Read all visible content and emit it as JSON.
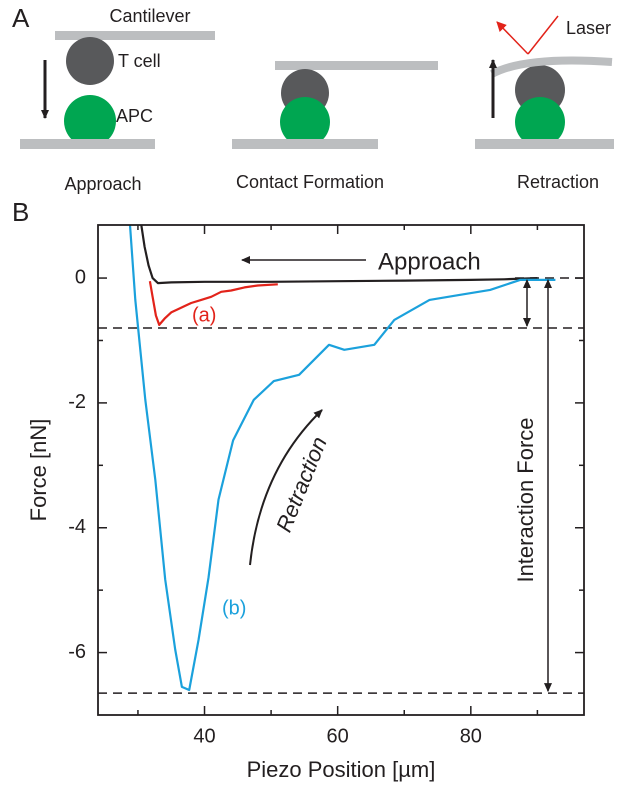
{
  "panel_labels": [
    "A",
    "B"
  ],
  "diagram": {
    "labels": {
      "cantilever": "Cantilever",
      "t_cell": "T cell",
      "apc": "APC",
      "laser": "Laser"
    },
    "steps": [
      "Approach",
      "Contact Formation",
      "Retraction"
    ]
  },
  "chart_data": {
    "type": "line",
    "xlabel": "Piezo Position [µm]",
    "ylabel": "Force [nN]",
    "xlim": [
      24,
      97
    ],
    "ylim": [
      -7,
      0.85
    ],
    "xticks": [
      40,
      60,
      80
    ],
    "yticks": [
      0,
      -2,
      -4,
      -6
    ],
    "xminor": [
      30,
      50,
      70,
      90
    ],
    "yminor": [
      -1,
      -3,
      -5
    ],
    "hlines": [
      0,
      -0.8,
      -6.65
    ],
    "annotations": [
      "Retraction",
      "Interaction Force"
    ],
    "series": [
      {
        "name": "Approach",
        "color": "#231f20",
        "x": [
          30.5,
          31,
          31.6,
          32.2,
          33,
          35,
          40,
          50,
          60,
          70,
          80,
          85,
          90
        ],
        "values": [
          0.85,
          0.5,
          0.2,
          0,
          -0.08,
          -0.07,
          -0.06,
          -0.06,
          -0.05,
          -0.04,
          -0.03,
          -0.02,
          0
        ]
      },
      {
        "name": "(a)",
        "color": "#e2231a",
        "x": [
          31.8,
          32.2,
          32.7,
          33.2,
          34,
          35,
          36,
          37,
          38,
          39.5,
          41,
          42.5,
          44,
          46,
          48,
          51
        ],
        "values": [
          -0.05,
          -0.3,
          -0.6,
          -0.75,
          -0.65,
          -0.55,
          -0.5,
          -0.45,
          -0.4,
          -0.35,
          -0.3,
          -0.22,
          -0.2,
          -0.15,
          -0.12,
          -0.1
        ]
      },
      {
        "name": "(b)",
        "color": "#1ba1dc",
        "x": [
          28.8,
          29.6,
          31.1,
          32.6,
          34.1,
          35.6,
          36.6,
          37.7,
          39.1,
          40.6,
          42.1,
          44.3,
          47.4,
          50.4,
          54.2,
          58.7,
          61,
          65.5,
          68.5,
          73.8,
          78.3,
          82.9,
          87.4,
          92.7
        ],
        "values": [
          0.85,
          -0.35,
          -1.95,
          -3.23,
          -4.83,
          -5.95,
          -6.55,
          -6.6,
          -5.8,
          -4.8,
          -3.55,
          -2.6,
          -1.95,
          -1.65,
          -1.55,
          -1.07,
          -1.15,
          -1.07,
          -0.67,
          -0.35,
          -0.27,
          -0.19,
          -0.03,
          -0.03
        ]
      }
    ]
  }
}
